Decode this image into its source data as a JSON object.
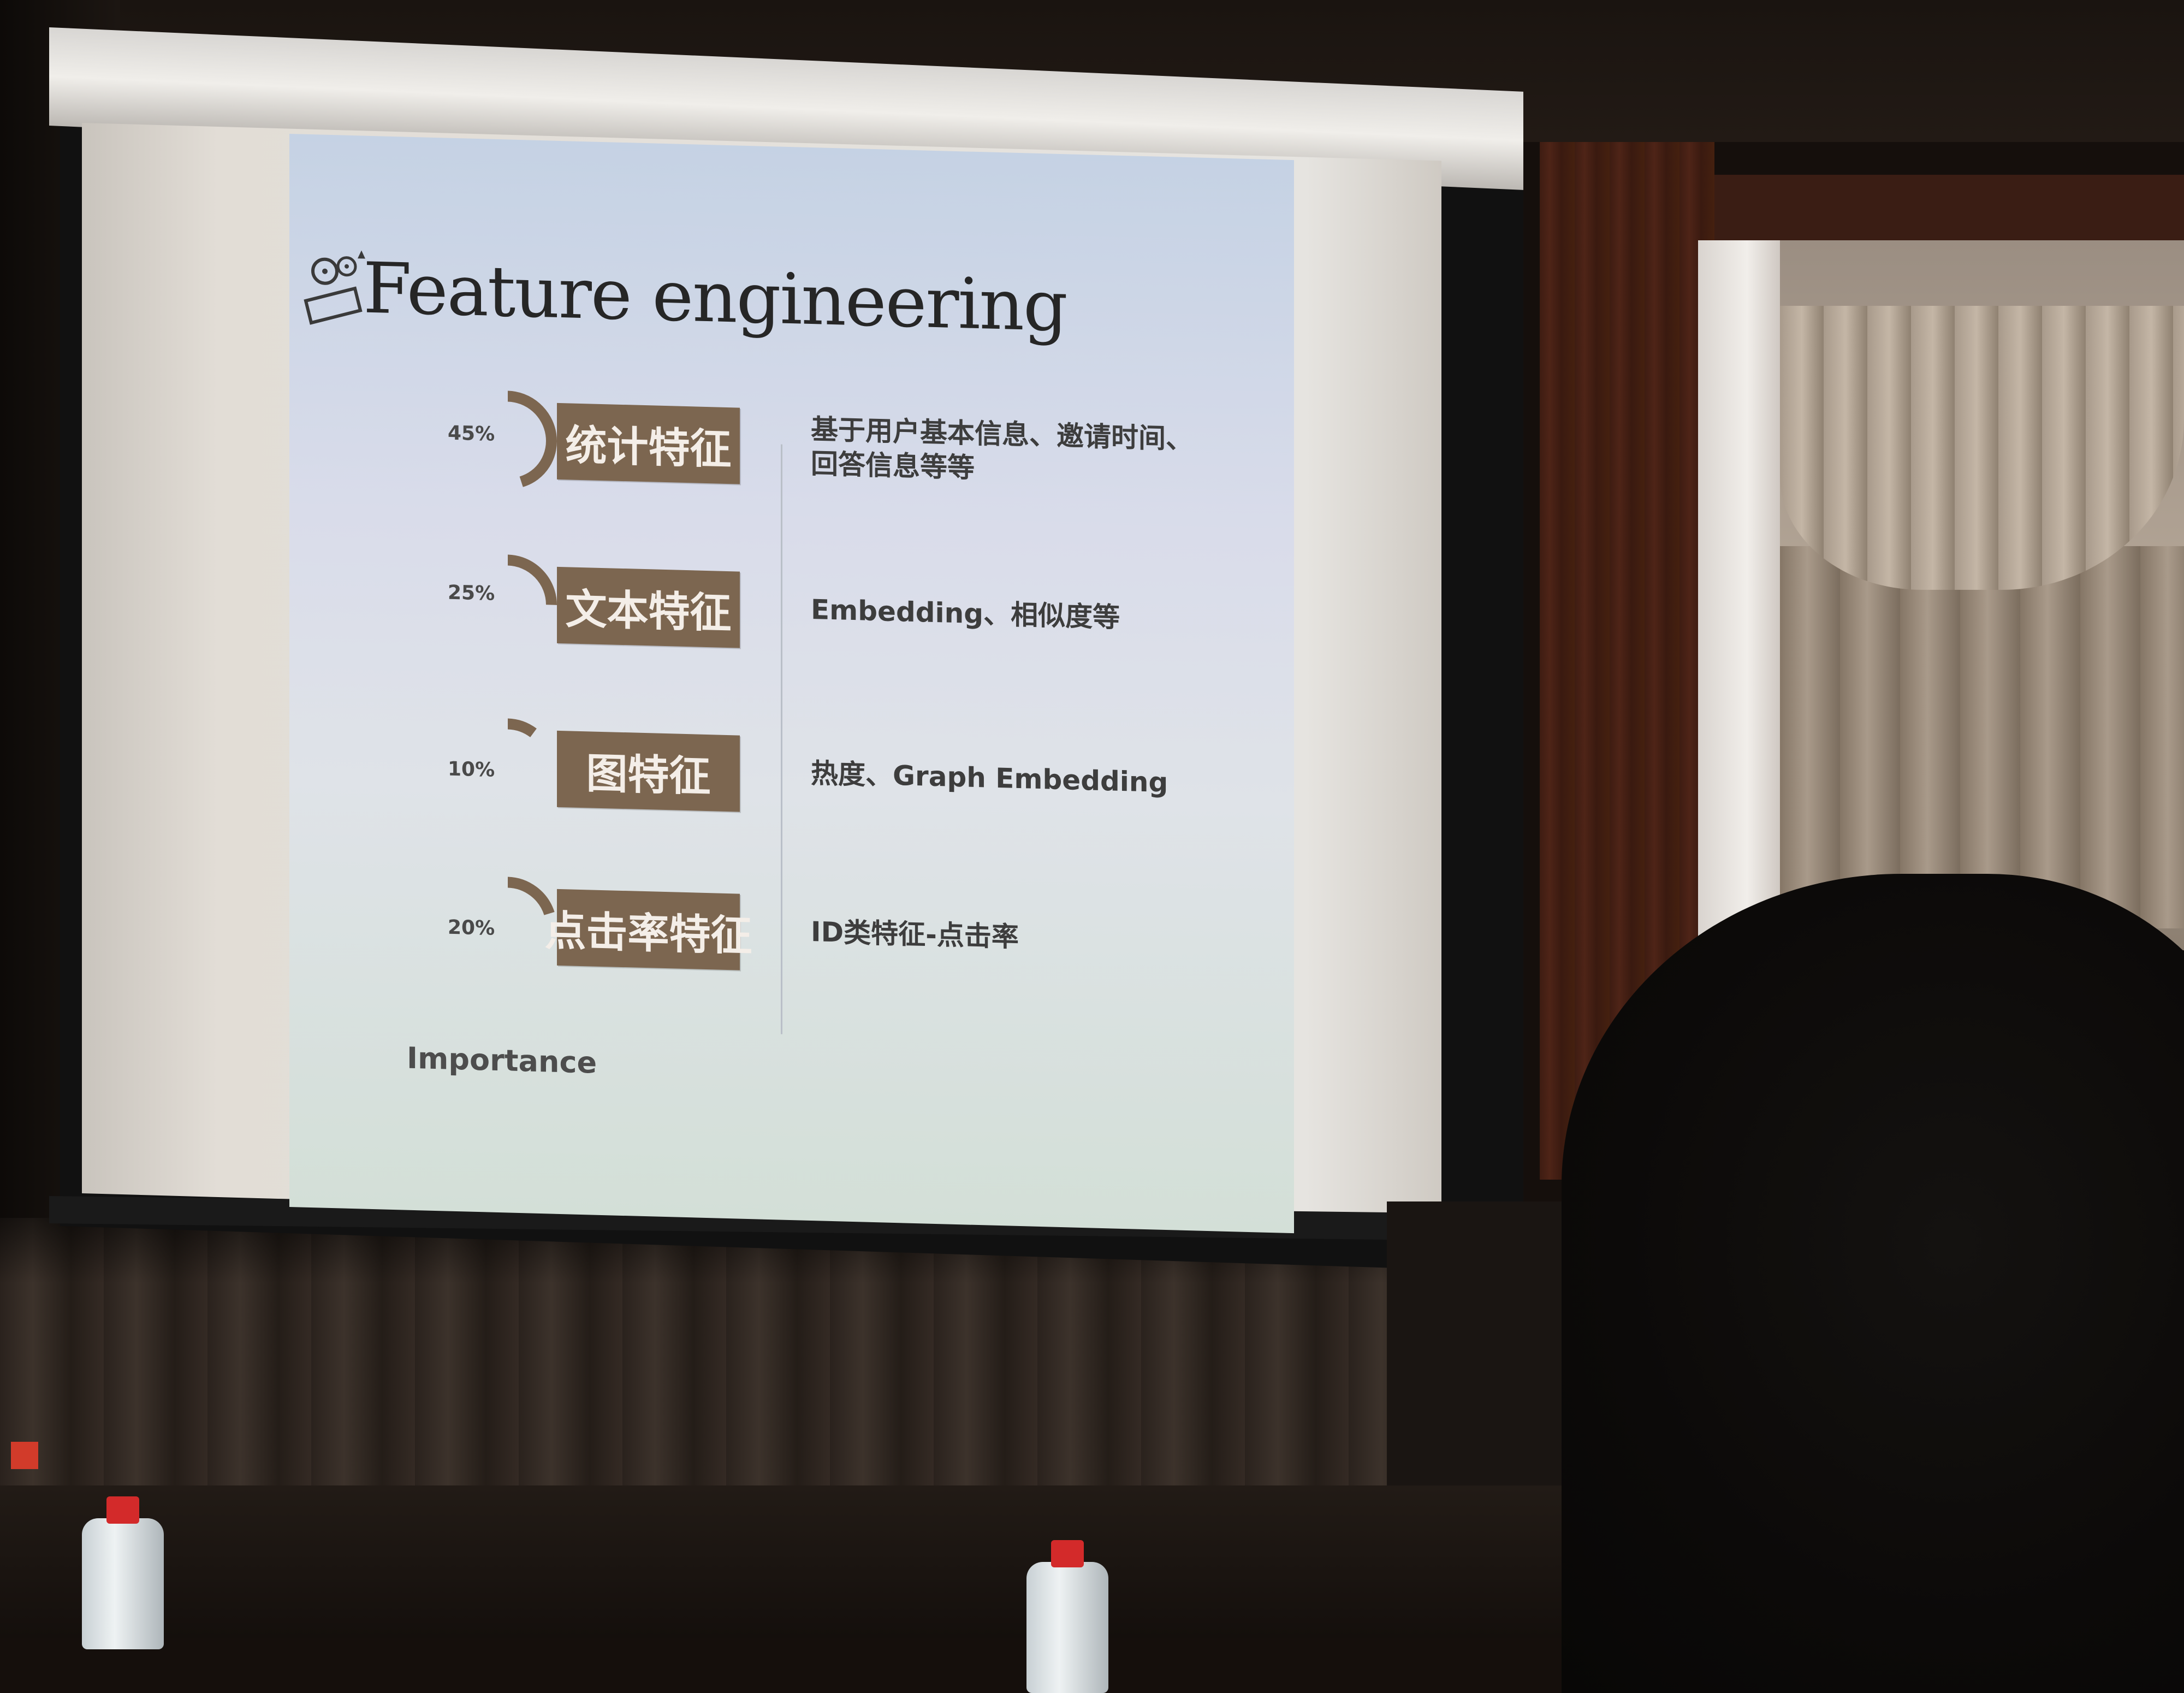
{
  "slide": {
    "title": "Feature engineering",
    "rows": [
      {
        "percent": "45%",
        "value": 45,
        "label": "统计特征",
        "description": "基于用户基本信息、邀请时间、\n回答信息等等"
      },
      {
        "percent": "25%",
        "value": 25,
        "label": "文本特征",
        "description": "Embedding、相似度等"
      },
      {
        "percent": "10%",
        "value": 10,
        "label": "图特征",
        "description": "热度、Graph Embedding"
      },
      {
        "percent": "20%",
        "value": 20,
        "label": "点击率特征",
        "description": "ID类特征-点击率"
      }
    ],
    "footer": "Importance",
    "colors": {
      "label_bg": "#7c6650",
      "arc": "#7c6650",
      "label_text": "#f4eee8"
    },
    "logo_icon": "film-reel-icon"
  }
}
